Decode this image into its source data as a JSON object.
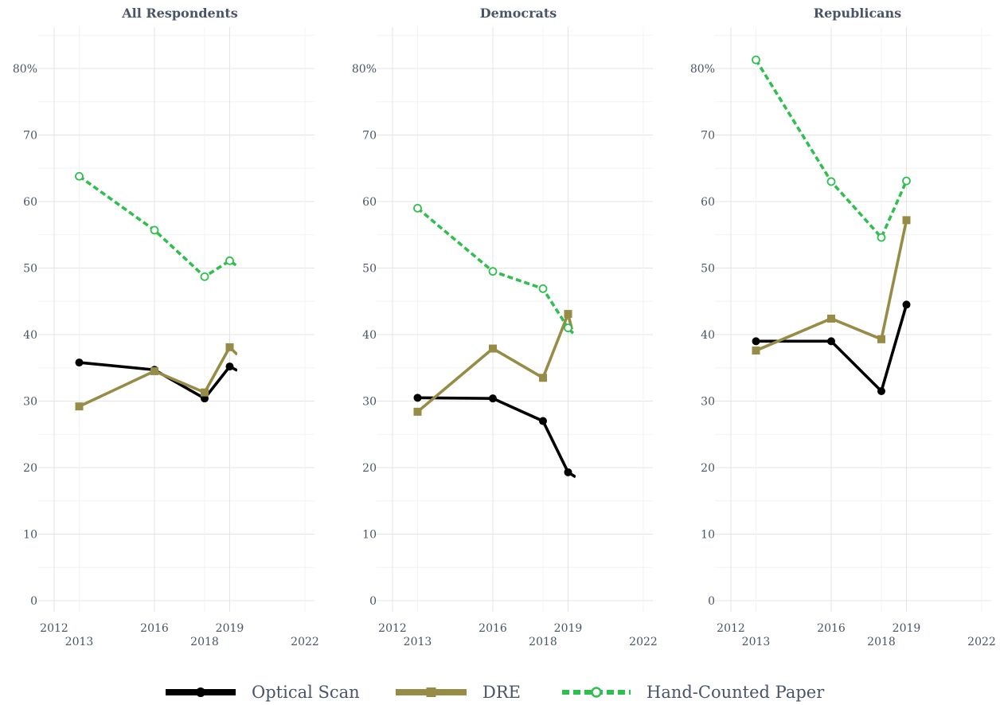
{
  "chart_data": {
    "type": "line",
    "panels": [
      {
        "title": "All Respondents",
        "series": [
          {
            "name": "Optical Scan",
            "x": [
              2013,
              2016,
              2018,
              2019,
              2019.3
            ],
            "values": [
              35.8,
              34.7,
              30.4,
              35.2,
              34.6
            ]
          },
          {
            "name": "DRE",
            "x": [
              2013,
              2016,
              2018,
              2019,
              2019.3
            ],
            "values": [
              29.2,
              34.5,
              31.3,
              38.1,
              37.0
            ]
          },
          {
            "name": "Hand-Counted Paper",
            "x": [
              2013,
              2016,
              2018,
              2019,
              2019.3
            ],
            "values": [
              63.8,
              55.7,
              48.7,
              51.1,
              50.3
            ]
          }
        ]
      },
      {
        "title": "Democrats",
        "series": [
          {
            "name": "Optical Scan",
            "x": [
              2013,
              2016,
              2018,
              2019,
              2019.3
            ],
            "values": [
              30.5,
              30.4,
              27.0,
              19.3,
              18.6
            ]
          },
          {
            "name": "DRE",
            "x": [
              2013,
              2016,
              2018,
              2019,
              2019.15
            ],
            "values": [
              28.4,
              37.9,
              33.5,
              43.1,
              40.8
            ]
          },
          {
            "name": "Hand-Counted Paper",
            "x": [
              2013,
              2016,
              2018,
              2019,
              2019.2
            ],
            "values": [
              59.0,
              49.5,
              46.9,
              41.0,
              40.2
            ]
          }
        ]
      },
      {
        "title": "Republicans",
        "series": [
          {
            "name": "Optical Scan",
            "x": [
              2013,
              2016,
              2018,
              2019
            ],
            "values": [
              39.0,
              39.0,
              31.5,
              44.5
            ]
          },
          {
            "name": "DRE",
            "x": [
              2013,
              2016,
              2018,
              2019
            ],
            "values": [
              37.6,
              42.4,
              39.3,
              57.2
            ]
          },
          {
            "name": "Hand-Counted Paper",
            "x": [
              2013,
              2016,
              2018,
              2019
            ],
            "values": [
              81.3,
              63.0,
              54.6,
              63.1
            ]
          }
        ]
      }
    ],
    "y_ticks": [
      "0",
      "10",
      "20",
      "30",
      "40",
      "50",
      "60",
      "70",
      "80%"
    ],
    "y_tick_values": [
      0,
      10,
      20,
      30,
      40,
      50,
      60,
      70,
      80
    ],
    "ylim": [
      0,
      80
    ],
    "x_ticks_row1": [
      2012,
      2016,
      2019
    ],
    "x_ticks_row2": [
      2013,
      2018,
      2022
    ],
    "xlim": [
      2012,
      2022
    ],
    "grid": true,
    "legend_placement": "bottom",
    "legend": [
      {
        "label": "Optical Scan",
        "color": "#000000",
        "marker": "circle",
        "line": "solid"
      },
      {
        "label": "DRE",
        "color": "#978c46",
        "marker": "square",
        "line": "solid"
      },
      {
        "label": "Hand-Counted Paper",
        "color": "#2fbf4f",
        "marker": "open-circle",
        "line": "dashed"
      }
    ],
    "colors": {
      "Optical Scan": "#000000",
      "DRE": "#978c46",
      "Hand-Counted Paper": "#2fbf4f",
      "text": "#4a5468"
    }
  }
}
